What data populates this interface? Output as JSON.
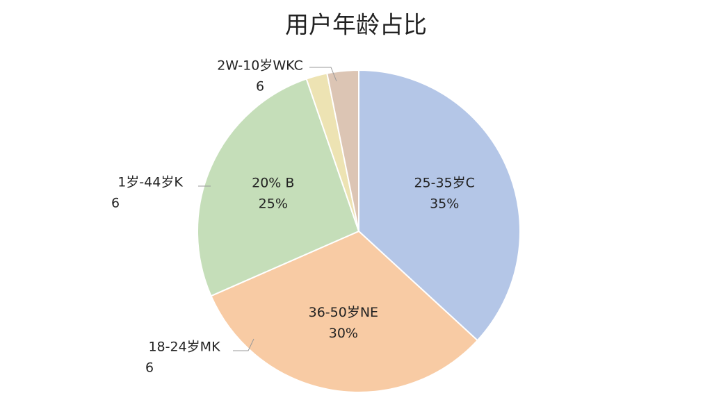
{
  "chart_data": {
    "type": "pie",
    "title": "用户年龄占比",
    "categories": [
      "25-35岁C",
      "36-50岁NE",
      "20% B",
      null,
      null
    ],
    "values": [
      35,
      30,
      25,
      2,
      3
    ],
    "value_labels": [
      "35%",
      "30%",
      "25%",
      null,
      null
    ],
    "colors": [
      "#b4c6e7",
      "#f8cba4",
      "#c5deb9",
      "#ede3b3",
      "#dcc5b4"
    ],
    "annotations": [
      [
        "2W-10岁WKC",
        "6"
      ],
      [
        "1岁-44岁K",
        "6"
      ],
      [
        "18-24岁MK",
        "6"
      ]
    ]
  }
}
